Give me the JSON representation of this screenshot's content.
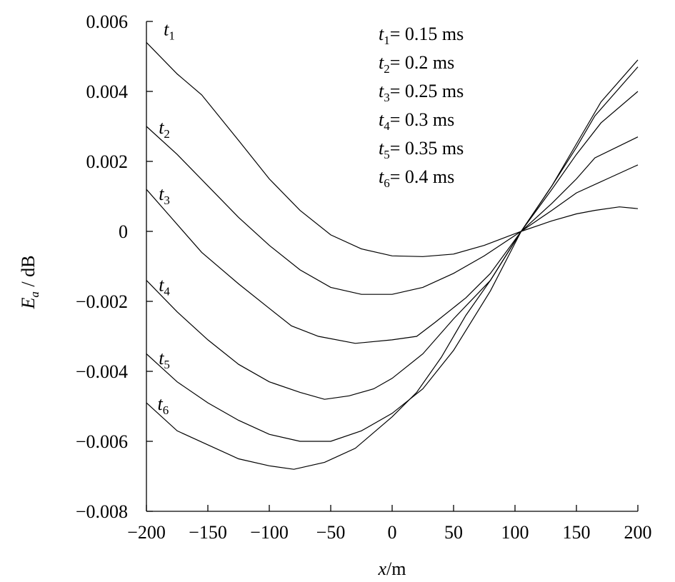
{
  "chart_data": {
    "type": "line",
    "xlabel": {
      "var": "x",
      "rest": "/m"
    },
    "ylabel": {
      "var": "E",
      "sub": "a",
      "rest": " / dB"
    },
    "xlim": [
      -200,
      200
    ],
    "ylim": [
      -0.008,
      0.006
    ],
    "xticks": [
      -200,
      -150,
      -100,
      -50,
      0,
      50,
      100,
      150,
      200
    ],
    "xtick_labels": [
      "−200",
      "−150",
      "−100",
      "−50",
      "0",
      "50",
      "100",
      "150",
      "200"
    ],
    "yticks": [
      0.006,
      0.004,
      0.002,
      0,
      -0.002,
      -0.004,
      -0.006,
      -0.008
    ],
    "ytick_labels": [
      "0.006",
      "0.004",
      "0.002",
      "0",
      "−0.002",
      "−0.004",
      "−0.006",
      "−0.008"
    ],
    "grid": false,
    "legend": {
      "placement": "top-right",
      "entries": [
        {
          "var": "t",
          "sub": "1",
          "text": "= 0.15 ms"
        },
        {
          "var": "t",
          "sub": "2",
          "text": "= 0.2 ms"
        },
        {
          "var": "t",
          "sub": "3",
          "text": "= 0.25 ms"
        },
        {
          "var": "t",
          "sub": "4",
          "text": "= 0.3 ms"
        },
        {
          "var": "t",
          "sub": "5",
          "text": "= 0.35 ms"
        },
        {
          "var": "t",
          "sub": "6",
          "text": "= 0.4 ms"
        }
      ]
    },
    "series": [
      {
        "name": "t1",
        "label": {
          "var": "t",
          "sub": "1"
        },
        "label_at": [
          -186,
          0.0056
        ],
        "x": [
          -200,
          -175,
          -155,
          -125,
          -100,
          -75,
          -50,
          -25,
          0,
          25,
          50,
          75,
          105,
          130,
          150,
          165,
          185,
          200
        ],
        "y": [
          0.0054,
          0.0045,
          0.0039,
          0.0026,
          0.0015,
          0.0006,
          -0.0001,
          -0.0005,
          -0.0007,
          -0.00072,
          -0.00065,
          -0.0004,
          0.0,
          0.0003,
          0.0005,
          0.0006,
          0.0007,
          0.00065
        ]
      },
      {
        "name": "t2",
        "label": {
          "var": "t",
          "sub": "2"
        },
        "label_at": [
          -190,
          0.0028
        ],
        "x": [
          -200,
          -175,
          -150,
          -125,
          -100,
          -75,
          -50,
          -25,
          -15,
          0,
          25,
          50,
          75,
          105,
          130,
          150,
          175,
          200
        ],
        "y": [
          0.003,
          0.0022,
          0.0013,
          0.0004,
          -0.0004,
          -0.0011,
          -0.0016,
          -0.0018,
          -0.0018,
          -0.0018,
          -0.0016,
          -0.0012,
          -0.0007,
          0.0,
          0.0006,
          0.0011,
          0.0015,
          0.0019
        ]
      },
      {
        "name": "t3",
        "label": {
          "var": "t",
          "sub": "3"
        },
        "label_at": [
          -190,
          0.0009
        ],
        "x": [
          -200,
          -180,
          -155,
          -125,
          -100,
          -82,
          -60,
          -30,
          0,
          20,
          35,
          60,
          80,
          105,
          130,
          150,
          165,
          200
        ],
        "y": [
          0.0012,
          0.0004,
          -0.0006,
          -0.0015,
          -0.0022,
          -0.0027,
          -0.003,
          -0.0032,
          -0.0031,
          -0.003,
          -0.0026,
          -0.0019,
          -0.0012,
          0.0,
          0.0008,
          0.0015,
          0.0021,
          0.0027
        ]
      },
      {
        "name": "t4",
        "label": {
          "var": "t",
          "sub": "4"
        },
        "label_at": [
          -190,
          -0.0017
        ],
        "x": [
          -200,
          -175,
          -150,
          -125,
          -100,
          -75,
          -55,
          -35,
          -15,
          0,
          25,
          50,
          80,
          105,
          130,
          150,
          170,
          200
        ],
        "y": [
          -0.0014,
          -0.0023,
          -0.0031,
          -0.0038,
          -0.0043,
          -0.0046,
          -0.0048,
          -0.0047,
          -0.0045,
          -0.0042,
          -0.0035,
          -0.0025,
          -0.0014,
          0.0,
          0.0012,
          0.0022,
          0.0031,
          0.004
        ]
      },
      {
        "name": "t5",
        "label": {
          "var": "t",
          "sub": "5"
        },
        "label_at": [
          -190,
          -0.0038
        ],
        "x": [
          -200,
          -175,
          -150,
          -125,
          -100,
          -75,
          -50,
          -25,
          0,
          25,
          50,
          80,
          105,
          130,
          150,
          165,
          200
        ],
        "y": [
          -0.0035,
          -0.0043,
          -0.0049,
          -0.0054,
          -0.0058,
          -0.006,
          -0.006,
          -0.0057,
          -0.0052,
          -0.0045,
          -0.0034,
          -0.0017,
          0.0,
          0.0013,
          0.0024,
          0.0033,
          0.0047
        ]
      },
      {
        "name": "t6",
        "label": {
          "var": "t",
          "sub": "6"
        },
        "label_at": [
          -191,
          -0.0051
        ],
        "x": [
          -200,
          -175,
          -150,
          -125,
          -100,
          -80,
          -55,
          -30,
          0,
          20,
          40,
          60,
          80,
          105,
          130,
          150,
          170,
          200
        ],
        "y": [
          -0.0049,
          -0.0057,
          -0.0061,
          -0.0065,
          -0.0067,
          -0.0068,
          -0.0066,
          -0.0062,
          -0.0053,
          -0.0046,
          -0.0036,
          -0.0024,
          -0.0014,
          0.0,
          0.0013,
          0.0025,
          0.0037,
          0.0049
        ]
      }
    ]
  }
}
